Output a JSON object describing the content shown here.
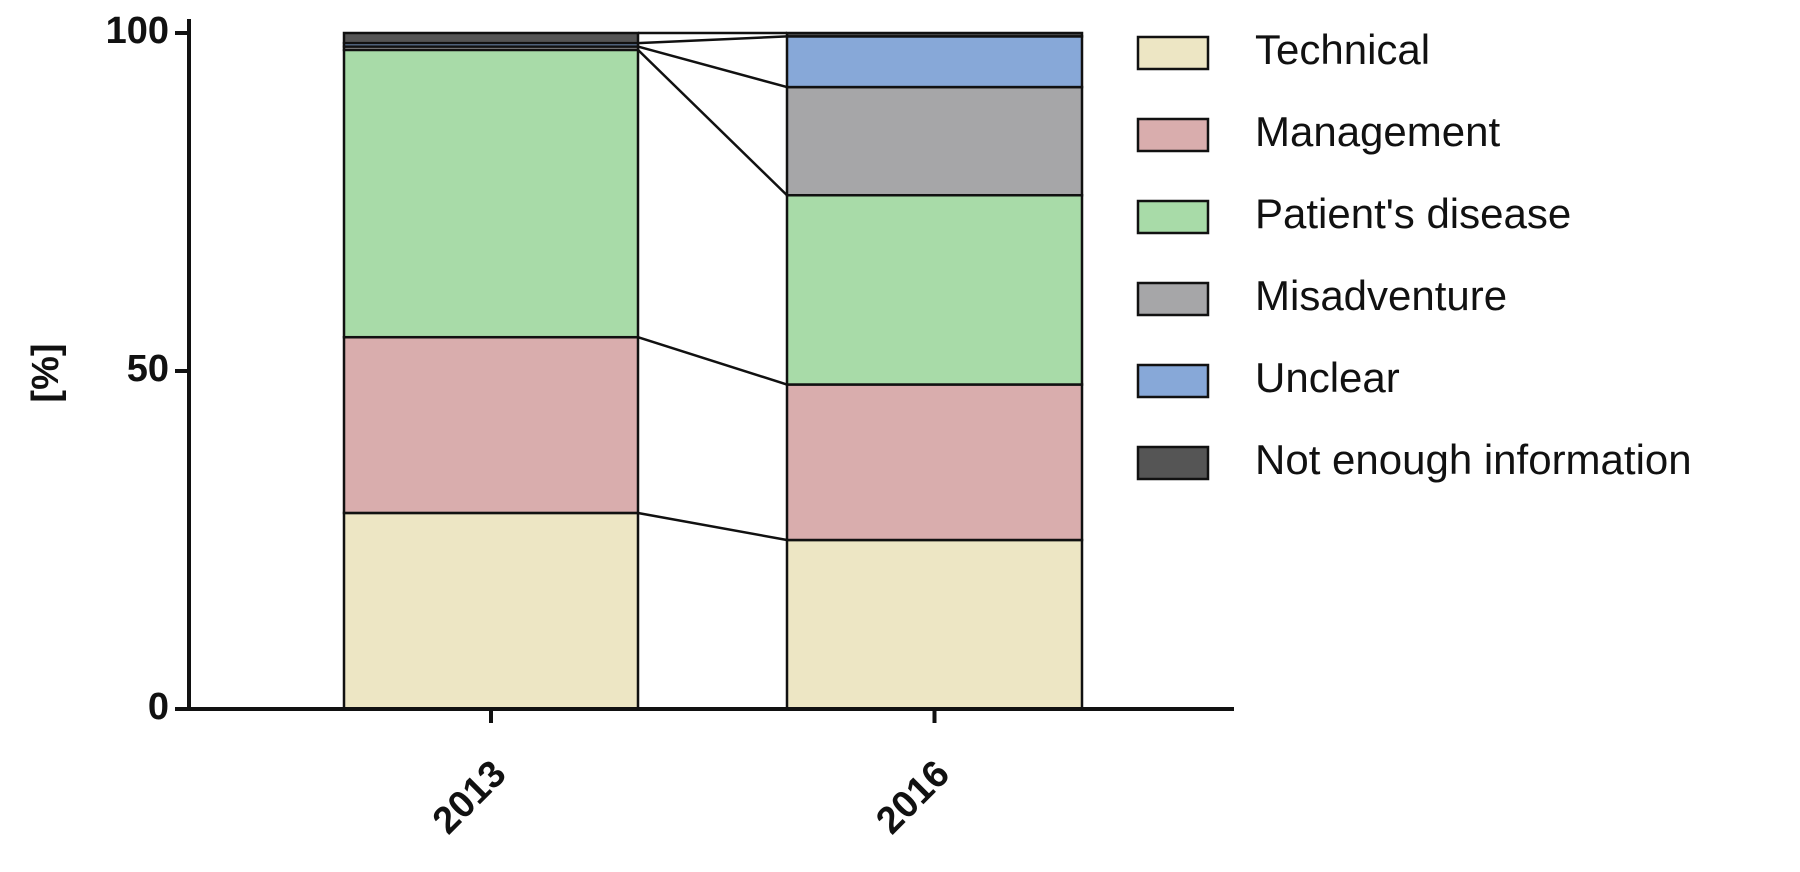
{
  "chart_data": {
    "type": "stacked-bar",
    "ylabel": "[%]",
    "categories": [
      "2013",
      "2016"
    ],
    "series": [
      {
        "name": "Technical",
        "color": "#ede6c4",
        "values": [
          29,
          25
        ]
      },
      {
        "name": "Management",
        "color": "#d9adad",
        "values": [
          26,
          23
        ]
      },
      {
        "name": "Patient's disease",
        "color": "#a8dba8",
        "values": [
          42.5,
          28
        ]
      },
      {
        "name": "Misadventure",
        "color": "#a6a6a8",
        "values": [
          0.5,
          16
        ]
      },
      {
        "name": "Unclear",
        "color": "#87a8d8",
        "values": [
          0.5,
          7.5
        ]
      },
      {
        "name": "Not enough information",
        "color": "#555555",
        "values": [
          1.5,
          0.5
        ]
      }
    ],
    "ylim": [
      0,
      100
    ],
    "yticks": [
      0,
      50,
      100
    ],
    "connectors": true
  }
}
